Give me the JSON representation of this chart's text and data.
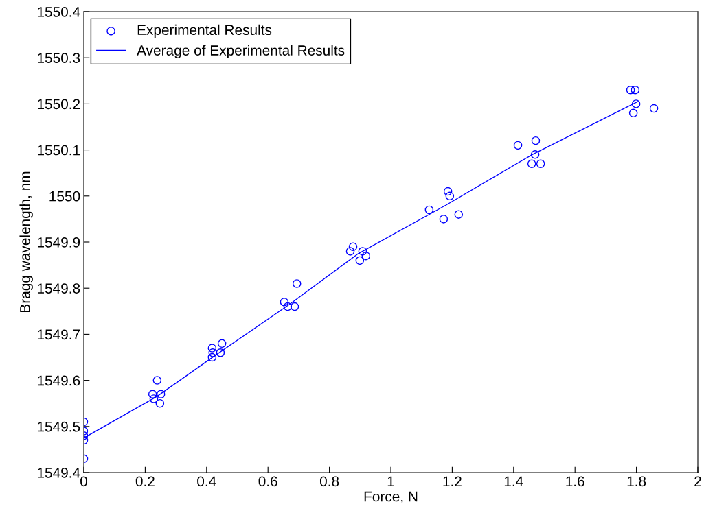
{
  "chart_data": {
    "type": "scatter",
    "xlabel": "Force, N",
    "ylabel": "Bragg wavelength, nm",
    "xlim": [
      0,
      2
    ],
    "ylim": [
      1549.4,
      1550.4
    ],
    "xticks": [
      0,
      0.2,
      0.4,
      0.6,
      0.8,
      1,
      1.2,
      1.4,
      1.6,
      1.8,
      2
    ],
    "yticks": [
      1549.4,
      1549.5,
      1549.6,
      1549.7,
      1549.8,
      1549.9,
      1550,
      1550.1,
      1550.2,
      1550.3,
      1550.4
    ],
    "grid": false,
    "legend": "top left",
    "series": [
      {
        "name": "Experimental Results",
        "marker": "circle",
        "color": "#0000ff",
        "x": [
          0,
          0,
          0,
          0,
          0,
          0.224,
          0.228,
          0.239,
          0.248,
          0.251,
          0.418,
          0.418,
          0.42,
          0.445,
          0.45,
          0.653,
          0.664,
          0.687,
          0.694,
          0.868,
          0.877,
          0.899,
          0.908,
          0.919,
          1.125,
          1.172,
          1.186,
          1.192,
          1.221,
          1.414,
          1.459,
          1.47,
          1.472,
          1.488,
          1.781,
          1.79,
          1.796,
          1.799,
          1.857
        ],
        "values": [
          1549.51,
          1549.49,
          1549.48,
          1549.47,
          1549.43,
          1549.57,
          1549.56,
          1549.6,
          1549.55,
          1549.57,
          1549.67,
          1549.65,
          1549.66,
          1549.66,
          1549.68,
          1549.77,
          1549.76,
          1549.76,
          1549.81,
          1549.88,
          1549.89,
          1549.86,
          1549.88,
          1549.87,
          1549.97,
          1549.95,
          1550.01,
          1550.0,
          1549.96,
          1550.11,
          1550.07,
          1550.09,
          1550.12,
          1550.07,
          1550.23,
          1550.18,
          1550.23,
          1550.2,
          1550.19
        ]
      },
      {
        "name": "Average of Experimental Results",
        "type": "line",
        "marker": "none",
        "line_style": "solid",
        "color": "#0000ff",
        "x": [
          0,
          0.238,
          0.43,
          0.67,
          0.894,
          1.179,
          1.461,
          1.805
        ],
        "values": [
          1549.475,
          1549.565,
          1549.655,
          1549.765,
          1549.875,
          1549.98,
          1550.09,
          1550.205
        ]
      }
    ]
  }
}
